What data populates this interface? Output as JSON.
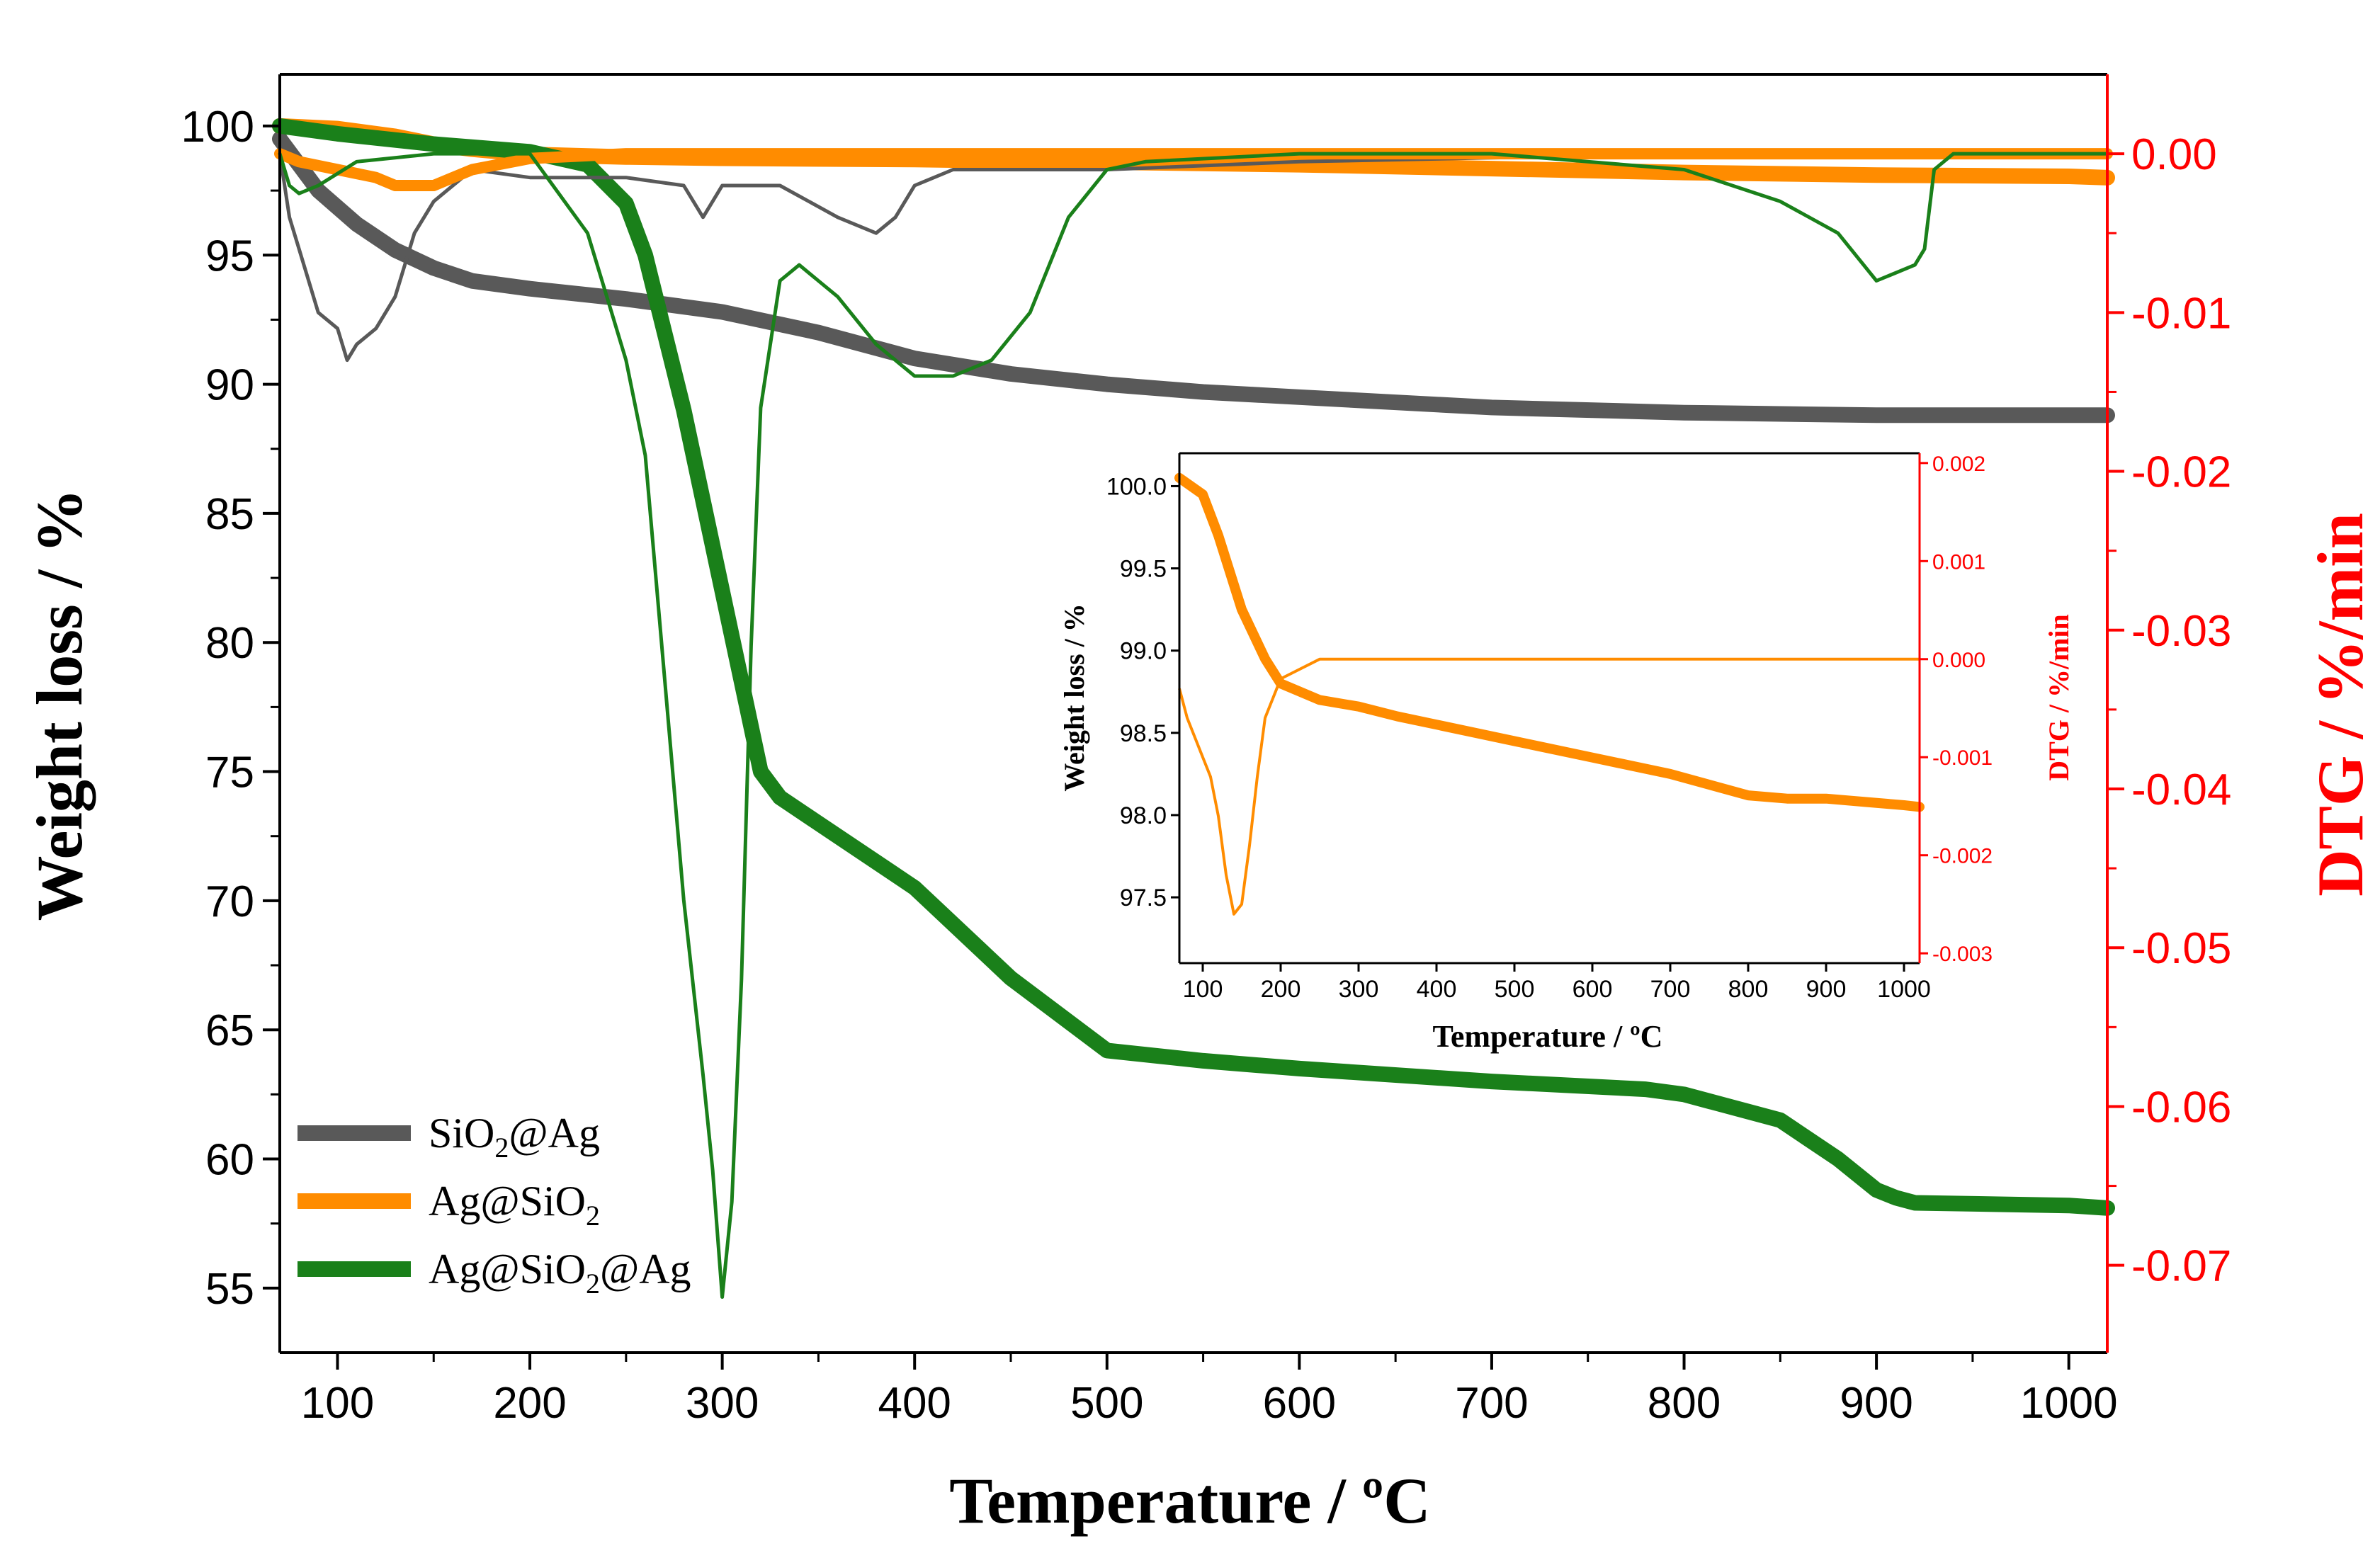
{
  "chart_data": {
    "type": "line",
    "x_label": "Temperature / ºC",
    "y_label_left": "Weight loss  / %",
    "y_label_right": "DTG / %/min",
    "xlim": [
      70,
      1020
    ],
    "ylim_left": [
      52.5,
      102
    ],
    "ylim_right": [
      -0.0755,
      0.005
    ],
    "x_ticks": [
      "100",
      "200",
      "300",
      "400",
      "500",
      "600",
      "700",
      "800",
      "900",
      "1000"
    ],
    "y_ticks_left": [
      "55",
      "60",
      "65",
      "70",
      "75",
      "80",
      "85",
      "90",
      "95",
      "100"
    ],
    "y_ticks_right": [
      "-0.07",
      "-0.06",
      "-0.05",
      "-0.04",
      "-0.03",
      "-0.02",
      "-0.01",
      "0.00"
    ],
    "colors": {
      "SiO2@Ag": "#595959",
      "Ag@SiO2": "#ff8c00",
      "Ag@SiO2@Ag": "#1a801a",
      "dtg_axis": "#ff0000"
    },
    "legend": {
      "position": "bottom-left",
      "entries": [
        {
          "key": "SiO2@Ag",
          "pre": "SiO",
          "sub": "2",
          "post": "@Ag"
        },
        {
          "key": "Ag@SiO2",
          "pre": "Ag@SiO",
          "sub": "2",
          "post": ""
        },
        {
          "key": "Ag@SiO2@Ag",
          "pre": "Ag@SiO",
          "sub": "2",
          "post": "@Ag"
        }
      ]
    },
    "series": [
      {
        "name": "SiO2@Ag",
        "kind": "weight",
        "x": [
          70,
          90,
          110,
          130,
          150,
          170,
          200,
          250,
          300,
          350,
          400,
          450,
          500,
          550,
          600,
          700,
          800,
          900,
          1000,
          1020
        ],
        "y": [
          99.5,
          97.5,
          96.2,
          95.2,
          94.5,
          94.0,
          93.7,
          93.3,
          92.8,
          92.0,
          91.0,
          90.4,
          90.0,
          89.7,
          89.5,
          89.1,
          88.9,
          88.8,
          88.8,
          88.8
        ]
      },
      {
        "name": "Ag@SiO2",
        "kind": "weight",
        "x": [
          70,
          100,
          130,
          150,
          170,
          200,
          250,
          300,
          400,
          500,
          600,
          700,
          800,
          900,
          1000,
          1020
        ],
        "y": [
          100.0,
          99.9,
          99.6,
          99.3,
          99.1,
          98.9,
          98.8,
          98.75,
          98.7,
          98.6,
          98.5,
          98.35,
          98.2,
          98.1,
          98.05,
          98.0
        ]
      },
      {
        "name": "Ag@SiO2@Ag",
        "kind": "weight",
        "x": [
          70,
          100,
          150,
          200,
          230,
          250,
          260,
          280,
          300,
          320,
          330,
          350,
          400,
          450,
          500,
          550,
          600,
          700,
          780,
          800,
          850,
          880,
          900,
          910,
          920,
          1000,
          1020
        ],
        "y": [
          100.0,
          99.7,
          99.3,
          99.0,
          98.5,
          97.0,
          95.0,
          89.0,
          82.0,
          75.0,
          74.0,
          73.0,
          70.5,
          67.0,
          64.2,
          63.8,
          63.5,
          63.0,
          62.7,
          62.5,
          61.5,
          60.0,
          58.8,
          58.5,
          58.3,
          58.2,
          58.1
        ]
      },
      {
        "name": "SiO2@Ag",
        "kind": "dtg",
        "x": [
          70,
          75,
          80,
          90,
          100,
          105,
          110,
          120,
          130,
          140,
          150,
          170,
          200,
          250,
          280,
          290,
          300,
          330,
          360,
          380,
          390,
          400,
          420,
          450,
          500,
          600,
          800,
          900,
          1000,
          1020
        ],
        "y": [
          0.0,
          -0.004,
          -0.006,
          -0.01,
          -0.011,
          -0.013,
          -0.012,
          -0.011,
          -0.009,
          -0.005,
          -0.003,
          -0.001,
          -0.0015,
          -0.0015,
          -0.002,
          -0.004,
          -0.002,
          -0.002,
          -0.004,
          -0.005,
          -0.004,
          -0.002,
          -0.001,
          -0.001,
          -0.001,
          -0.0005,
          0.0,
          0.0,
          0.0,
          0.0
        ]
      },
      {
        "name": "Ag@SiO2",
        "kind": "dtg",
        "x": [
          70,
          80,
          100,
          120,
          130,
          140,
          150,
          160,
          170,
          200,
          250,
          300,
          400,
          500,
          600,
          800,
          1000,
          1020
        ],
        "y": [
          0.0,
          -0.0005,
          -0.001,
          -0.0015,
          -0.002,
          -0.002,
          -0.002,
          -0.0015,
          -0.001,
          -0.0003,
          0.0,
          0.0,
          0.0,
          0.0,
          0.0,
          0.0,
          0.0,
          0.0
        ]
      },
      {
        "name": "Ag@SiO2@Ag",
        "kind": "dtg",
        "x": [
          70,
          75,
          80,
          90,
          110,
          150,
          200,
          230,
          240,
          250,
          260,
          270,
          280,
          290,
          295,
          300,
          305,
          310,
          315,
          320,
          330,
          340,
          350,
          360,
          380,
          400,
          420,
          440,
          460,
          480,
          500,
          520,
          600,
          700,
          800,
          850,
          880,
          900,
          920,
          925,
          930,
          940,
          960,
          1000,
          1020
        ],
        "y": [
          0.0,
          -0.002,
          -0.0025,
          -0.002,
          -0.0005,
          0.0,
          0.0,
          -0.005,
          -0.009,
          -0.013,
          -0.019,
          -0.033,
          -0.047,
          -0.058,
          -0.064,
          -0.072,
          -0.066,
          -0.052,
          -0.031,
          -0.016,
          -0.008,
          -0.007,
          -0.008,
          -0.009,
          -0.012,
          -0.014,
          -0.014,
          -0.013,
          -0.01,
          -0.004,
          -0.001,
          -0.0005,
          0.0,
          0.0,
          -0.001,
          -0.003,
          -0.005,
          -0.008,
          -0.007,
          -0.006,
          -0.001,
          0.0,
          0.0,
          0.0,
          0.0
        ]
      }
    ],
    "inset": {
      "x_label": "Temperature / ºC",
      "y_label_left": "Weight loss  / %",
      "y_label_right": "DTG / %/min",
      "xlim": [
        70,
        1020
      ],
      "ylim_left": [
        97.1,
        100.2
      ],
      "ylim_right": [
        -0.0031,
        0.0021
      ],
      "x_ticks": [
        "100",
        "200",
        "300",
        "400",
        "500",
        "600",
        "700",
        "800",
        "900",
        "1000"
      ],
      "y_ticks_left": [
        "97.5",
        "98.0",
        "98.5",
        "99.0",
        "99.5",
        "100.0"
      ],
      "y_ticks_right": [
        "-0.003",
        "-0.002",
        "-0.001",
        "0.000",
        "0.001",
        "0.002"
      ],
      "weight": {
        "x": [
          70,
          100,
          120,
          150,
          180,
          200,
          250,
          300,
          350,
          400,
          500,
          600,
          700,
          800,
          850,
          900,
          950,
          1000,
          1020
        ],
        "y": [
          100.05,
          99.95,
          99.7,
          99.25,
          98.95,
          98.8,
          98.7,
          98.66,
          98.6,
          98.55,
          98.45,
          98.35,
          98.25,
          98.12,
          98.1,
          98.1,
          98.08,
          98.06,
          98.05
        ]
      },
      "dtg": {
        "x": [
          70,
          80,
          90,
          100,
          110,
          120,
          130,
          140,
          150,
          160,
          170,
          180,
          200,
          250,
          400,
          600,
          800,
          1000,
          1020
        ],
        "y": [
          -0.0003,
          -0.0006,
          -0.0008,
          -0.001,
          -0.0012,
          -0.0016,
          -0.0022,
          -0.0026,
          -0.0025,
          -0.0019,
          -0.0012,
          -0.0006,
          -0.0002,
          0.0,
          0.0,
          0.0,
          0.0,
          0.0,
          0.0
        ]
      }
    }
  }
}
